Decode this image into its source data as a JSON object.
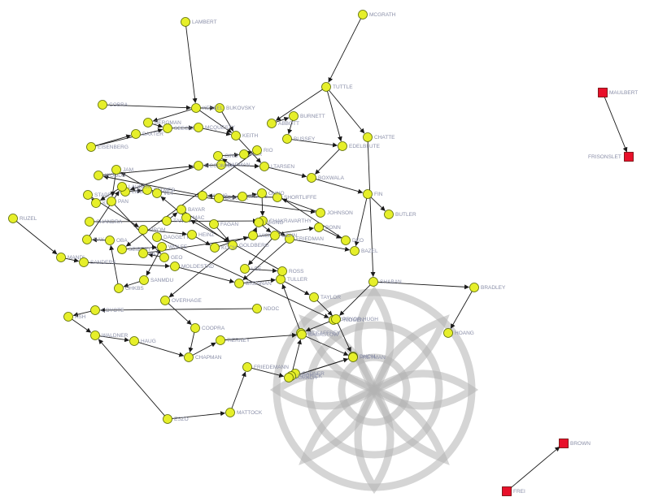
{
  "colors": {
    "main_node": "#e6ef2a",
    "isolated_node": "#e8102a",
    "edge": "#1a1a1a",
    "label": "#8a8fa8"
  },
  "nodes": [
    {
      "id": "n_lambert",
      "label": "LAMBERT",
      "shape": "circle"
    },
    {
      "id": "n_mcgrath",
      "label": "MCGRATH",
      "shape": "circle"
    },
    {
      "id": "n_tuttle",
      "label": "TUTTLE",
      "shape": "circle"
    },
    {
      "id": "n_chatte",
      "label": "CHATTE",
      "shape": "circle"
    },
    {
      "id": "n_cobra",
      "label": "COBRA",
      "shape": "circle"
    },
    {
      "id": "n_baxter",
      "label": "BAXTER",
      "shape": "circle"
    },
    {
      "id": "n_bukovsky",
      "label": "BUKOVSKY",
      "shape": "circle"
    },
    {
      "id": "n_abbott",
      "label": "ABBOTT",
      "shape": "circle"
    },
    {
      "id": "n_burnett",
      "label": "BURNETT",
      "shape": "circle"
    },
    {
      "id": "n_kessel",
      "label": "KESSEL",
      "shape": "circle"
    },
    {
      "id": "n_bergman",
      "label": "BERGMAN",
      "shape": "circle"
    },
    {
      "id": "n_seeger",
      "label": "SEEGER",
      "shape": "circle"
    },
    {
      "id": "n_mcquesty",
      "label": "MCQUESTY",
      "shape": "circle"
    },
    {
      "id": "n_keith",
      "label": "KEITH",
      "shape": "circle"
    },
    {
      "id": "n_bussey",
      "label": "BUSSEY",
      "shape": "circle"
    },
    {
      "id": "n_edelblute",
      "label": "EDELBLUTE",
      "shape": "circle"
    },
    {
      "id": "n_eisenberg",
      "label": "EISENBERG",
      "shape": "circle"
    },
    {
      "id": "n_kapman",
      "label": "KAPMAN",
      "shape": "circle"
    },
    {
      "id": "n_ltarsen",
      "label": "LTARSEN",
      "shape": "circle"
    },
    {
      "id": "n_mccomick",
      "label": "MCCOMICK",
      "shape": "circle"
    },
    {
      "id": "n_boxwala",
      "label": "BOXWALA",
      "shape": "circle"
    },
    {
      "id": "n_fin",
      "label": "FIN",
      "shape": "circle"
    },
    {
      "id": "n_butler",
      "label": "BUTLER",
      "shape": "circle"
    },
    {
      "id": "n_lieberman",
      "label": "LIEBERMAN",
      "shape": "circle"
    },
    {
      "id": "n_woods",
      "label": "WOODS",
      "shape": "circle"
    },
    {
      "id": "n_palmer",
      "label": "PALMER",
      "shape": "circle"
    },
    {
      "id": "n_lwang",
      "label": "LWANG",
      "shape": "circle"
    },
    {
      "id": "n_shortliffe",
      "label": "SHORTLIFFE",
      "shape": "circle"
    },
    {
      "id": "n_johnson",
      "label": "JOHNSON",
      "shape": "circle"
    },
    {
      "id": "n_ruzel",
      "label": "RUZEL",
      "shape": "circle"
    },
    {
      "id": "n_dorner",
      "label": "DORNER",
      "shape": "circle"
    },
    {
      "id": "n_huang",
      "label": "HUANG",
      "shape": "circle"
    },
    {
      "id": "n_ohno",
      "label": "OHNO",
      "shape": "circle"
    },
    {
      "id": "n_chandra",
      "label": "CHANDRA",
      "shape": "circle"
    },
    {
      "id": "n_chakravarthy",
      "label": "CHAKRAVARTHY",
      "shape": "circle"
    },
    {
      "id": "n_friedman",
      "label": "FRIEDMAN",
      "shape": "circle"
    },
    {
      "id": "n_tanov",
      "label": "TANOV",
      "shape": "circle"
    },
    {
      "id": "n_bayar",
      "label": "BAYAR",
      "shape": "circle"
    },
    {
      "id": "n_fagan",
      "label": "FAGAN",
      "shape": "circle"
    },
    {
      "id": "n_goldberg",
      "label": "GOLDBERG",
      "shape": "circle"
    },
    {
      "id": "n_mandl",
      "label": "MANDL",
      "shape": "circle"
    },
    {
      "id": "n_sanders",
      "label": "SANDERS",
      "shape": "circle"
    },
    {
      "id": "n_moldestad",
      "label": "MOLDESTAD",
      "shape": "circle"
    },
    {
      "id": "n_bazel",
      "label": "BAZEL",
      "shape": "circle"
    },
    {
      "id": "n_brennan",
      "label": "BRENNAN",
      "shape": "circle"
    },
    {
      "id": "n_tuller",
      "label": "TULLER",
      "shape": "circle"
    },
    {
      "id": "n_shaban",
      "label": "SHABAN",
      "shape": "circle"
    },
    {
      "id": "n_bradley",
      "label": "BRADLEY",
      "shape": "circle"
    },
    {
      "id": "n_hoang",
      "label": "HOANG",
      "shape": "circle"
    },
    {
      "id": "n_coyote",
      "label": "COYOTE",
      "shape": "circle"
    },
    {
      "id": "n_overhage",
      "label": "OVERHAGE",
      "shape": "circle"
    },
    {
      "id": "n_ash",
      "label": "ASH",
      "shape": "circle"
    },
    {
      "id": "n_ndoc",
      "label": "NDOC",
      "shape": "circle"
    },
    {
      "id": "n_taylor",
      "label": "TAYLOR",
      "shape": "circle"
    },
    {
      "id": "n_pridgen",
      "label": "PRIDGEN",
      "shape": "circle"
    },
    {
      "id": "n_mccaffrey",
      "label": "MCCAFFREY",
      "shape": "circle"
    },
    {
      "id": "n_pryorhugh",
      "label": "PRYOR HUGH",
      "shape": "circle"
    },
    {
      "id": "n_dhcm",
      "label": "DHCM",
      "shape": "circle"
    },
    {
      "id": "n_coopra",
      "label": "COOPRA",
      "shape": "circle"
    },
    {
      "id": "n_gadner",
      "label": "GADNER",
      "shape": "circle"
    },
    {
      "id": "n_waldner",
      "label": "WALDNER",
      "shape": "circle"
    },
    {
      "id": "n_haug",
      "label": "HAUG",
      "shape": "circle"
    },
    {
      "id": "n_tierney",
      "label": "TIERNEY",
      "shape": "circle"
    },
    {
      "id": "n_bacastow",
      "label": "BACASTOW",
      "shape": "circle"
    },
    {
      "id": "n_freyman",
      "label": "FREYMAN",
      "shape": "circle"
    },
    {
      "id": "n_chapman",
      "label": "CHAPMAN",
      "shape": "circle"
    },
    {
      "id": "n_rodrick",
      "label": "RODRICK",
      "shape": "circle"
    },
    {
      "id": "n_friedemann",
      "label": "FRIEDEMANN",
      "shape": "circle"
    },
    {
      "id": "n_eszo",
      "label": "ESZO",
      "shape": "circle"
    },
    {
      "id": "n_mattock",
      "label": "MATTOCK",
      "shape": "circle"
    },
    {
      "id": "n_lobach",
      "label": "LOBACH",
      "shape": "circle"
    },
    {
      "id": "n_daggett",
      "label": "DAGGETT",
      "shape": "circle"
    },
    {
      "id": "n_seibert",
      "label": "SEIBERT",
      "shape": "circle"
    },
    {
      "id": "n_wolfe",
      "label": "WOLFE",
      "shape": "circle"
    },
    {
      "id": "n_sanmdu",
      "label": "SANMDU",
      "shape": "circle"
    },
    {
      "id": "n_ohkbs",
      "label": "OHKBS",
      "shape": "circle"
    },
    {
      "id": "n_oba",
      "label": "OBA",
      "shape": "circle"
    },
    {
      "id": "n_ray",
      "label": "RAY",
      "shape": "circle"
    },
    {
      "id": "n_lauber",
      "label": "LAUBER",
      "shape": "circle"
    },
    {
      "id": "n_kimm",
      "label": "KIMM",
      "shape": "circle"
    },
    {
      "id": "n_stapf",
      "label": "STAPF",
      "shape": "circle"
    },
    {
      "id": "n_prom",
      "label": "PROM",
      "shape": "circle"
    },
    {
      "id": "n_heinz",
      "label": "HEINZ",
      "shape": "circle"
    },
    {
      "id": "n_koch",
      "label": "KOCH",
      "shape": "circle"
    },
    {
      "id": "n_vick",
      "label": "VICK",
      "shape": "circle"
    },
    {
      "id": "n_leung",
      "label": "LEUNG",
      "shape": "circle"
    },
    {
      "id": "n_cohn",
      "label": "COHN",
      "shape": "circle"
    },
    {
      "id": "n_lee",
      "label": "LEE",
      "shape": "circle"
    },
    {
      "id": "n_ross",
      "label": "ROSS",
      "shape": "circle"
    },
    {
      "id": "n_mac",
      "label": "MAC",
      "shape": "circle"
    },
    {
      "id": "n_vet",
      "label": "VET",
      "shape": "circle"
    },
    {
      "id": "n_jam",
      "label": "JAM",
      "shape": "circle"
    },
    {
      "id": "n_pan",
      "label": "PAN",
      "shape": "circle"
    },
    {
      "id": "n_geo",
      "label": "GEO",
      "shape": "circle"
    },
    {
      "id": "n_alt",
      "label": "ALT",
      "shape": "circle"
    },
    {
      "id": "n_bonn",
      "label": "BONN",
      "shape": "circle"
    },
    {
      "id": "n_deo",
      "label": "DEO",
      "shape": "circle"
    },
    {
      "id": "n_gino",
      "label": "GINO",
      "shape": "circle"
    },
    {
      "id": "n_kor",
      "label": "KOR",
      "shape": "circle"
    },
    {
      "id": "n_rio",
      "label": "RIO",
      "shape": "circle"
    },
    {
      "id": "n_maulbert",
      "label": "MAULBERT",
      "shape": "square"
    },
    {
      "id": "n_frisonslet",
      "label": "FRISONSLET",
      "shape": "square"
    },
    {
      "id": "n_brown",
      "label": "BROWN",
      "shape": "square"
    },
    {
      "id": "n_frei",
      "label": "FREI",
      "shape": "square"
    }
  ],
  "edges": [
    [
      "n_lambert",
      "n_kessel"
    ],
    [
      "n_mcgrath",
      "n_tuttle"
    ],
    [
      "n_tuttle",
      "n_abbott"
    ],
    [
      "n_tuttle",
      "n_chatte"
    ],
    [
      "n_chatte",
      "n_shaban"
    ],
    [
      "n_tuttle",
      "n_edelblute"
    ],
    [
      "n_cobra",
      "n_kessel"
    ],
    [
      "n_kessel",
      "n_bukovsky"
    ],
    [
      "n_kessel",
      "n_bergman"
    ],
    [
      "n_kessel",
      "n_keith"
    ],
    [
      "n_bukovsky",
      "n_keith"
    ],
    [
      "n_abbott",
      "n_burnett"
    ],
    [
      "n_burnett",
      "n_bussey"
    ],
    [
      "n_bussey",
      "n_edelblute"
    ],
    [
      "n_edelblute",
      "n_boxwala"
    ],
    [
      "n_boxwala",
      "n_fin"
    ],
    [
      "n_fin",
      "n_butler"
    ],
    [
      "n_fin",
      "n_bazel"
    ],
    [
      "n_bergman",
      "n_seeger"
    ],
    [
      "n_seeger",
      "n_mcquesty"
    ],
    [
      "n_mcquesty",
      "n_keith"
    ],
    [
      "n_keith",
      "n_ltarsen"
    ],
    [
      "n_ltarsen",
      "n_boxwala"
    ],
    [
      "n_eisenberg",
      "n_baxter"
    ],
    [
      "n_eisenberg",
      "n_seeger"
    ],
    [
      "n_kapman",
      "n_ltarsen"
    ],
    [
      "n_kapman",
      "n_mccomick"
    ],
    [
      "n_mccomick",
      "n_lieberman"
    ],
    [
      "n_lieberman",
      "n_palmer"
    ],
    [
      "n_palmer",
      "n_johnson"
    ],
    [
      "n_johnson",
      "n_shortliffe"
    ],
    [
      "n_shortliffe",
      "n_lwang"
    ],
    [
      "n_lwang",
      "n_woods"
    ],
    [
      "n_woods",
      "n_mccomick"
    ],
    [
      "n_ruzel",
      "n_mandl"
    ],
    [
      "n_mandl",
      "n_sanders"
    ],
    [
      "n_sanders",
      "n_moldestad"
    ],
    [
      "n_moldestad",
      "n_brennan"
    ],
    [
      "n_brennan",
      "n_tuller"
    ],
    [
      "n_tuller",
      "n_taylor"
    ],
    [
      "n_taylor",
      "n_pryorhugh"
    ],
    [
      "n_pryorhugh",
      "n_dhcm"
    ],
    [
      "n_shaban",
      "n_bradley"
    ],
    [
      "n_bradley",
      "n_hoang"
    ],
    [
      "n_shaban",
      "n_pryorhugh"
    ],
    [
      "n_chandra",
      "n_chakravarthy"
    ],
    [
      "n_chakravarthy",
      "n_friedman"
    ],
    [
      "n_friedman",
      "n_bazel"
    ],
    [
      "n_friedman",
      "n_brennan"
    ],
    [
      "n_huang",
      "n_ohno"
    ],
    [
      "n_ohno",
      "n_chakravarthy"
    ],
    [
      "n_dorner",
      "n_huang"
    ],
    [
      "n_tanov",
      "n_bayar"
    ],
    [
      "n_bayar",
      "n_goldberg"
    ],
    [
      "n_fagan",
      "n_goldberg"
    ],
    [
      "n_goldberg",
      "n_overhage"
    ],
    [
      "n_overhage",
      "n_coopra"
    ],
    [
      "n_coopra",
      "n_chapman"
    ],
    [
      "n_chapman",
      "n_tierney"
    ],
    [
      "n_tierney",
      "n_bacastow"
    ],
    [
      "n_bacastow",
      "n_freyman"
    ],
    [
      "n_freyman",
      "n_lobach"
    ],
    [
      "n_ash",
      "n_waldner"
    ],
    [
      "n_waldner",
      "n_haug"
    ],
    [
      "n_haug",
      "n_chapman"
    ],
    [
      "n_ndoc",
      "n_coyote"
    ],
    [
      "n_coyote",
      "n_ash"
    ],
    [
      "n_gadner",
      "n_rodrick"
    ],
    [
      "n_rodrick",
      "n_bacastow"
    ],
    [
      "n_eszo",
      "n_mattock"
    ],
    [
      "n_mattock",
      "n_friedemann"
    ],
    [
      "n_eszo",
      "n_waldner"
    ],
    [
      "n_friedemann",
      "n_lobach"
    ],
    [
      "n_lobach",
      "n_freyman"
    ],
    [
      "n_daggett",
      "n_pridgen"
    ],
    [
      "n_pridgen",
      "n_mccaffrey"
    ],
    [
      "n_mccaffrey",
      "n_tuller"
    ],
    [
      "n_seibert",
      "n_wolfe"
    ],
    [
      "n_wolfe",
      "n_sanmdu"
    ],
    [
      "n_sanmdu",
      "n_ohkbs"
    ],
    [
      "n_ohkbs",
      "n_oba"
    ],
    [
      "n_oba",
      "n_ray"
    ],
    [
      "n_ray",
      "n_lauber"
    ],
    [
      "n_lauber",
      "n_kimm"
    ],
    [
      "n_kimm",
      "n_stapf"
    ],
    [
      "n_stapf",
      "n_prom"
    ],
    [
      "n_prom",
      "n_heinz"
    ],
    [
      "n_heinz",
      "n_koch"
    ],
    [
      "n_koch",
      "n_vick"
    ],
    [
      "n_vick",
      "n_leung"
    ],
    [
      "n_leung",
      "n_cohn"
    ],
    [
      "n_cohn",
      "n_lee"
    ],
    [
      "n_lee",
      "n_ross"
    ],
    [
      "n_ross",
      "n_mac"
    ],
    [
      "n_mac",
      "n_vet"
    ],
    [
      "n_vet",
      "n_jam"
    ],
    [
      "n_jam",
      "n_pan"
    ],
    [
      "n_pan",
      "n_geo"
    ],
    [
      "n_geo",
      "n_alt"
    ],
    [
      "n_alt",
      "n_bonn"
    ],
    [
      "n_bonn",
      "n_deo"
    ],
    [
      "n_deo",
      "n_gino"
    ],
    [
      "n_gino",
      "n_kor"
    ],
    [
      "n_kor",
      "n_rio"
    ],
    [
      "n_rio",
      "n_seibert"
    ],
    [
      "n_maulbert",
      "n_frisonslet"
    ],
    [
      "n_frei",
      "n_brown"
    ]
  ]
}
